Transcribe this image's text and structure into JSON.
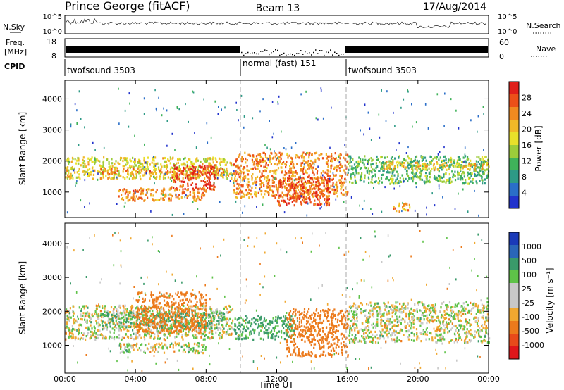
{
  "header": {
    "station": "Prince George (fitACF)",
    "beam": "Beam 13",
    "date": "17/Aug/2014"
  },
  "strips": {
    "nsky_label": "N.Sky",
    "nsky_ticks": [
      "10^5",
      "10^0"
    ],
    "nsearch_label": "N.Search",
    "nsearch_ticks": [
      "10^5",
      "10^0"
    ],
    "freq_label_1": "Freq.",
    "freq_label_2": "[MHz]",
    "freq_ticks": [
      "18",
      "8"
    ],
    "nave_label": "Nave",
    "nave_ticks": [
      "60",
      "0"
    ],
    "cpid_label": "CPID",
    "cpid_segments": [
      {
        "label": "twofsound 3503",
        "start_hour": 0,
        "end_hour": 10
      },
      {
        "label": "normal (fast) 151",
        "start_hour": 10,
        "end_hour": 16
      },
      {
        "label": "twofsound 3503",
        "start_hour": 16,
        "end_hour": 24
      }
    ]
  },
  "axes": {
    "xlabel": "Time UT",
    "x_tick_labels": [
      "00:00",
      "04:00",
      "08:00",
      "12:00",
      "16:00",
      "20:00",
      "00:00"
    ],
    "ylabel": "Slant Range [km]",
    "y_tick_labels": [
      "1000",
      "2000",
      "3000",
      "4000"
    ]
  },
  "power_scale": {
    "label": "Power [dB]",
    "ticks": [
      "4",
      "8",
      "12",
      "16",
      "20",
      "24",
      "28"
    ],
    "colors": [
      "#2233cc",
      "#2a6ec8",
      "#2e9a86",
      "#3fb25a",
      "#9ccc3a",
      "#e8e02a",
      "#f0b828",
      "#f08a20",
      "#ec5018",
      "#e0201a"
    ]
  },
  "velocity_scale": {
    "label": "Velocity [m s⁻¹]",
    "ticks": [
      "1000",
      "500",
      "100",
      "25",
      "-25",
      "-100",
      "-500",
      "-1000"
    ],
    "colors": [
      "#1a3ab8",
      "#2a66b8",
      "#3a9a6a",
      "#5ec248",
      "#c8c8c8",
      "#c8c8c8",
      "#f0a830",
      "#ec7a1c",
      "#e84a1a",
      "#e0161a"
    ]
  },
  "chart_data": [
    {
      "type": "heatmap",
      "title": "Power",
      "xlabel": "Time UT",
      "ylabel": "Slant Range [km]",
      "xlim": [
        0,
        24
      ],
      "ylim": [
        180,
        4600
      ],
      "colorbar": {
        "label": "Power [dB]",
        "range": [
          0,
          32
        ]
      },
      "bands": [
        {
          "t0": 0.0,
          "t1": 9.5,
          "r0": 1450,
          "r1": 2150,
          "value": 18
        },
        {
          "t0": 2.0,
          "t1": 9.0,
          "r0": 1600,
          "r1": 1800,
          "value": 24
        },
        {
          "t0": 6.0,
          "t1": 8.5,
          "r0": 1100,
          "r1": 1900,
          "value": 28
        },
        {
          "t0": 3.0,
          "t1": 8.0,
          "r0": 750,
          "r1": 1150,
          "value": 24
        },
        {
          "t0": 9.5,
          "t1": 16.0,
          "r0": 850,
          "r1": 2300,
          "value": 24
        },
        {
          "t0": 12.0,
          "t1": 15.0,
          "r0": 600,
          "r1": 1500,
          "value": 28
        },
        {
          "t0": 16.0,
          "t1": 24.0,
          "r0": 1300,
          "r1": 2200,
          "value": 12
        },
        {
          "t0": 18.0,
          "t1": 24.0,
          "r0": 1750,
          "r1": 2000,
          "value": 20
        },
        {
          "t0": 18.5,
          "t1": 19.5,
          "r0": 400,
          "r1": 700,
          "value": 22
        }
      ]
    },
    {
      "type": "heatmap",
      "title": "Velocity",
      "xlabel": "Time UT",
      "ylabel": "Slant Range [km]",
      "xlim": [
        0,
        24
      ],
      "ylim": [
        180,
        4600
      ],
      "colorbar": {
        "label": "Velocity [m s⁻¹]",
        "range": [
          -1000,
          1000
        ]
      },
      "bands": [
        {
          "t0": 0.0,
          "t1": 9.5,
          "r0": 1200,
          "r1": 2200,
          "value": 0
        },
        {
          "t0": 2.0,
          "t1": 9.0,
          "r0": 1500,
          "r1": 2000,
          "value": 100
        },
        {
          "t0": 4.0,
          "t1": 8.0,
          "r0": 1400,
          "r1": 2600,
          "value": -300
        },
        {
          "t0": 3.0,
          "t1": 8.0,
          "r0": 800,
          "r1": 1100,
          "value": 0
        },
        {
          "t0": 9.5,
          "t1": 13.0,
          "r0": 1200,
          "r1": 1900,
          "value": 150
        },
        {
          "t0": 12.5,
          "t1": 16.0,
          "r0": 700,
          "r1": 2100,
          "value": -350
        },
        {
          "t0": 16.0,
          "t1": 24.0,
          "r0": 1100,
          "r1": 2300,
          "value": 0
        }
      ]
    }
  ]
}
